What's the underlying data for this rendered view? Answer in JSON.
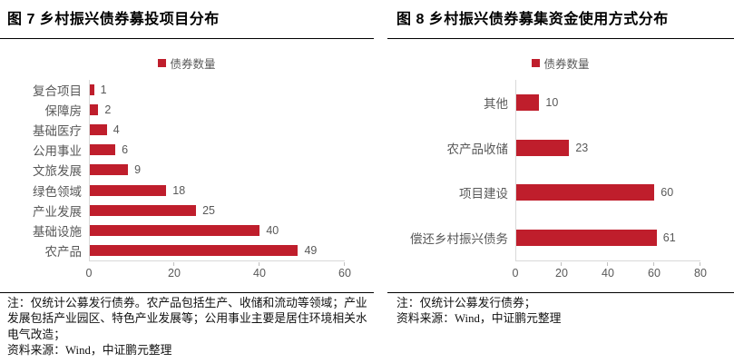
{
  "colors": {
    "bar_red": "#BF1E2C",
    "axis_gray": "#D9D9D9",
    "tick_gray": "#BFBFBF",
    "label_gray": "#595959",
    "rule_black": "#000000",
    "background": "#FFFFFF"
  },
  "figures": [
    {
      "title": "图 7 乡村振兴债券募投项目分布",
      "legend_label": "债券数量",
      "note": "注：仅统计公募发行债券。农产品包括生产、收储和流动等领域；产业发展包括产业园区、特色产业发展等；公用事业主要是居住环境相关水电气改造；",
      "source": "资料来源：Wind，中证鹏元整理"
    },
    {
      "title": "图 8 乡村振兴债券募集资金使用方式分布",
      "legend_label": "债券数量",
      "note": "注：仅统计公募发行债券；",
      "source": "资料来源：Wind，中证鹏元整理"
    }
  ],
  "chart_data": [
    {
      "type": "bar",
      "orientation": "horizontal",
      "title": "图 7 乡村振兴债券募投项目分布",
      "legend": [
        "债券数量"
      ],
      "legend_position": "top-center",
      "categories": [
        "复合项目",
        "保障房",
        "基础医疗",
        "公用事业",
        "文旅发展",
        "绿色领域",
        "产业发展",
        "基础设施",
        "农产品"
      ],
      "values": [
        1,
        2,
        4,
        6,
        9,
        18,
        25,
        40,
        49
      ],
      "xlabel": "",
      "ylabel": "",
      "xlim": [
        0,
        60
      ],
      "xticks": [
        0,
        20,
        40,
        60
      ],
      "grid": false,
      "data_labels": true,
      "bar_color": "#BF1E2C"
    },
    {
      "type": "bar",
      "orientation": "horizontal",
      "title": "图 8 乡村振兴债券募集资金使用方式分布",
      "legend": [
        "债券数量"
      ],
      "legend_position": "top-center",
      "categories": [
        "其他",
        "农产品收储",
        "项目建设",
        "偿还乡村振兴债务"
      ],
      "values": [
        10,
        23,
        60,
        61
      ],
      "xlabel": "",
      "ylabel": "",
      "xlim": [
        0,
        80
      ],
      "xticks": [
        0,
        20,
        40,
        60,
        80
      ],
      "grid": false,
      "data_labels": true,
      "bar_color": "#BF1E2C"
    }
  ]
}
